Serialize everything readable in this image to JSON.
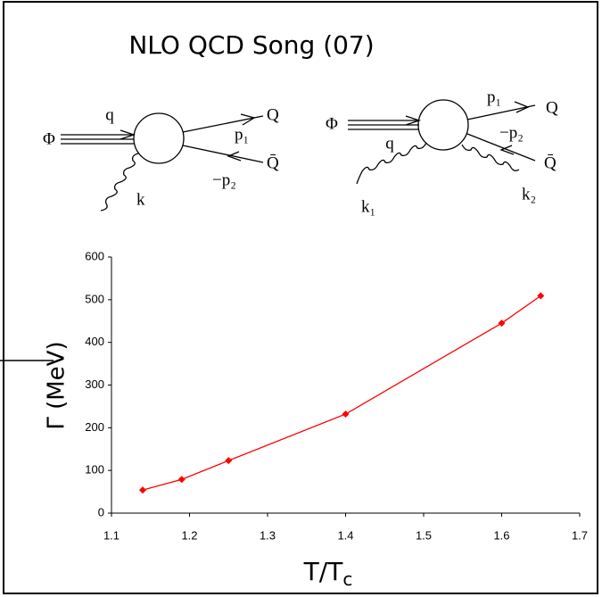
{
  "chart_data": {
    "type": "line",
    "title": "NLO QCD Song (07)",
    "y_label": "Γ (MeV)",
    "x_label": "T/T",
    "x_label_subscript": "c",
    "x": [
      1.14,
      1.19,
      1.25,
      1.4,
      1.6,
      1.65
    ],
    "series": [
      {
        "color": "#ff0000",
        "values": [
          54,
          79,
          123,
          232,
          445,
          509
        ]
      }
    ],
    "xlim": [
      1.1,
      1.7
    ],
    "xticks": [
      1.1,
      1.2,
      1.3,
      1.4,
      1.5,
      1.6,
      1.7
    ],
    "ylim": [
      0,
      600
    ],
    "yticks": [
      0,
      100,
      200,
      300,
      400,
      500,
      600
    ]
  },
  "diagrams": {
    "left": {
      "phi": "Φ",
      "q": "q",
      "Q": "Q",
      "p1": "p₁",
      "mp2": "−p₂",
      "Qbar": "Q̄",
      "k": "k"
    },
    "right": {
      "phi": "Φ",
      "q": "q",
      "Q": "Q",
      "p1": "p₁",
      "mp2": "−p₂",
      "Qbar": "Q̄",
      "k1": "k₁",
      "k2": "k₂"
    }
  }
}
